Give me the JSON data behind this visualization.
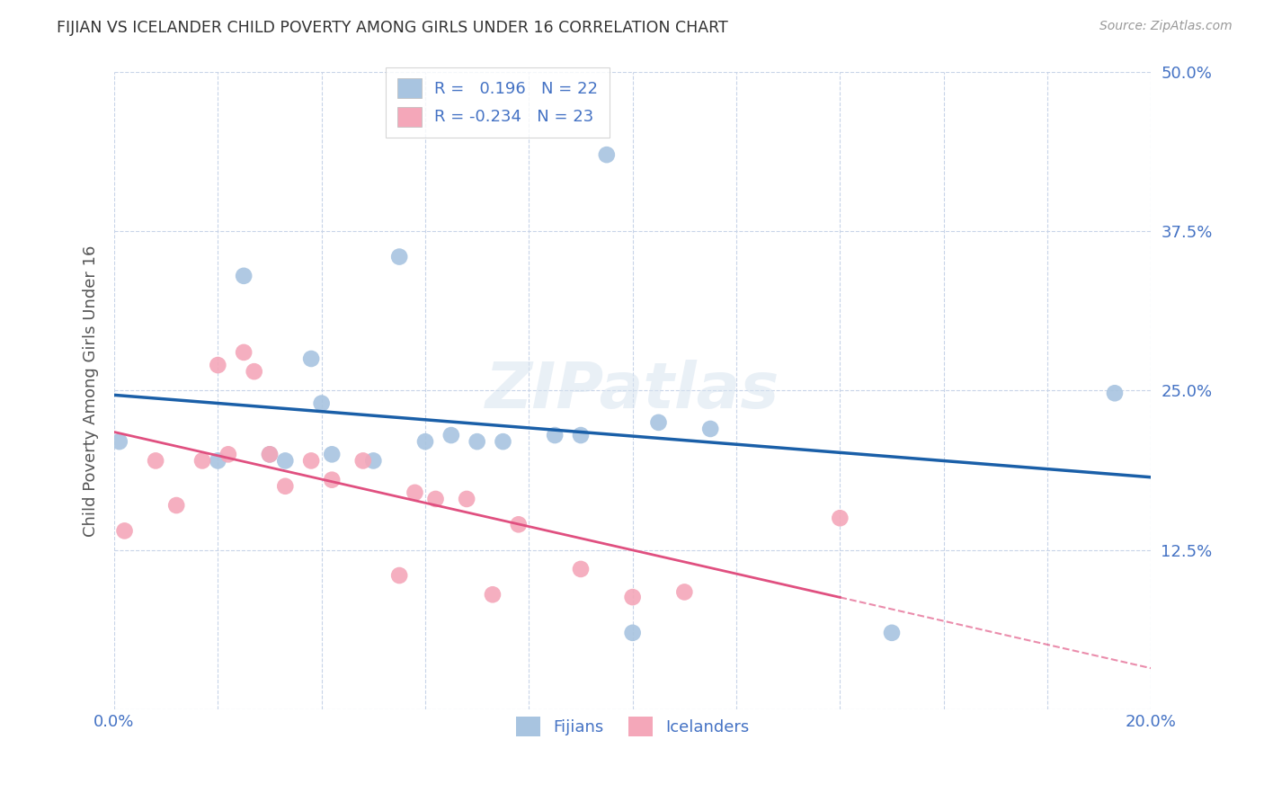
{
  "title": "FIJIAN VS ICELANDER CHILD POVERTY AMONG GIRLS UNDER 16 CORRELATION CHART",
  "source": "Source: ZipAtlas.com",
  "ylabel": "Child Poverty Among Girls Under 16",
  "xlim": [
    0.0,
    0.2
  ],
  "ylim": [
    0.0,
    0.5
  ],
  "fijian_color": "#a8c4e0",
  "icelander_color": "#f4a7b9",
  "fijian_line_color": "#1a5fa8",
  "icelander_line_color": "#e05080",
  "fijian_R": 0.196,
  "fijian_N": 22,
  "icelander_R": -0.234,
  "icelander_N": 23,
  "fijian_x": [
    0.001,
    0.02,
    0.025,
    0.03,
    0.033,
    0.038,
    0.04,
    0.042,
    0.05,
    0.055,
    0.06,
    0.065,
    0.07,
    0.075,
    0.085,
    0.09,
    0.095,
    0.1,
    0.105,
    0.115,
    0.15,
    0.193
  ],
  "fijian_y": [
    0.21,
    0.195,
    0.34,
    0.2,
    0.195,
    0.275,
    0.24,
    0.2,
    0.195,
    0.355,
    0.21,
    0.215,
    0.21,
    0.21,
    0.215,
    0.215,
    0.435,
    0.06,
    0.225,
    0.22,
    0.06,
    0.248
  ],
  "icelander_x": [
    0.002,
    0.008,
    0.012,
    0.017,
    0.02,
    0.022,
    0.025,
    0.027,
    0.03,
    0.033,
    0.038,
    0.042,
    0.048,
    0.055,
    0.058,
    0.062,
    0.068,
    0.073,
    0.078,
    0.09,
    0.1,
    0.11,
    0.14
  ],
  "icelander_y": [
    0.14,
    0.195,
    0.16,
    0.195,
    0.27,
    0.2,
    0.28,
    0.265,
    0.2,
    0.175,
    0.195,
    0.18,
    0.195,
    0.105,
    0.17,
    0.165,
    0.165,
    0.09,
    0.145,
    0.11,
    0.088,
    0.092,
    0.15
  ],
  "background_color": "#ffffff",
  "grid_color": "#c8d4e8",
  "title_color": "#333333",
  "axis_label_color": "#555555",
  "tick_label_color": "#4472c4",
  "legend_text_color": "#4472c4",
  "watermark_text": "ZIPatlas",
  "fijian_label": "Fijians",
  "icelander_label": "Icelanders"
}
